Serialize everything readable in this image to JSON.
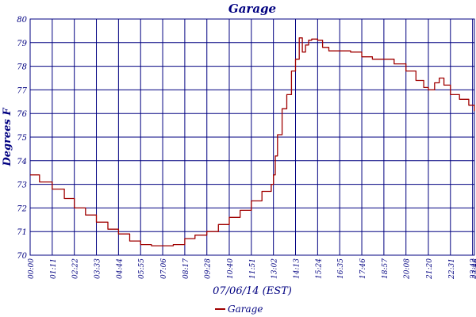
{
  "chart_data": {
    "type": "line",
    "title": "Garage",
    "xlabel": "07/06/14 (EST)",
    "ylabel": "Degrees F",
    "ylim": [
      70,
      80
    ],
    "yticks": [
      70,
      71,
      72,
      73,
      74,
      75,
      76,
      77,
      78,
      79,
      80
    ],
    "xticks": [
      "00:00",
      "01:11",
      "02:22",
      "03:33",
      "04:44",
      "05:55",
      "07:06",
      "08:17",
      "09:28",
      "10:40",
      "11:51",
      "13:02",
      "14:13",
      "15:24",
      "16:35",
      "17:46",
      "18:57",
      "20:08",
      "21:20",
      "22:31",
      "23:42",
      "23:48"
    ],
    "grid": true,
    "legend": "bottom-center",
    "colors": {
      "series": "#a00000",
      "grid": "#000080",
      "text": "#000080"
    },
    "series": [
      {
        "name": "Garage",
        "x": [
          "00:00",
          "00:30",
          "01:11",
          "01:50",
          "02:22",
          "02:58",
          "03:33",
          "04:10",
          "04:44",
          "05:20",
          "05:55",
          "06:30",
          "07:06",
          "07:40",
          "08:17",
          "08:50",
          "09:28",
          "10:05",
          "10:40",
          "11:15",
          "11:51",
          "12:25",
          "12:55",
          "13:02",
          "13:08",
          "13:15",
          "13:30",
          "13:45",
          "14:00",
          "14:13",
          "14:25",
          "14:35",
          "14:45",
          "14:55",
          "15:05",
          "15:24",
          "15:40",
          "16:00",
          "16:35",
          "17:10",
          "17:46",
          "18:20",
          "18:57",
          "19:30",
          "20:08",
          "20:40",
          "21:05",
          "21:20",
          "21:40",
          "21:55",
          "22:10",
          "22:31",
          "23:00",
          "23:30",
          "23:48"
        ],
        "values": [
          73.4,
          73.1,
          72.8,
          72.4,
          72.0,
          71.7,
          71.4,
          71.1,
          70.9,
          70.6,
          70.45,
          70.4,
          70.4,
          70.45,
          70.7,
          70.85,
          71.0,
          71.3,
          71.6,
          71.9,
          72.3,
          72.7,
          73.0,
          73.4,
          74.2,
          75.1,
          76.2,
          76.8,
          77.8,
          78.3,
          79.2,
          78.6,
          78.9,
          79.1,
          79.15,
          79.1,
          78.8,
          78.65,
          78.65,
          78.6,
          78.4,
          78.3,
          78.3,
          78.1,
          77.8,
          77.4,
          77.1,
          77.0,
          77.3,
          77.5,
          77.2,
          76.8,
          76.6,
          76.35,
          76.1
        ]
      }
    ]
  }
}
